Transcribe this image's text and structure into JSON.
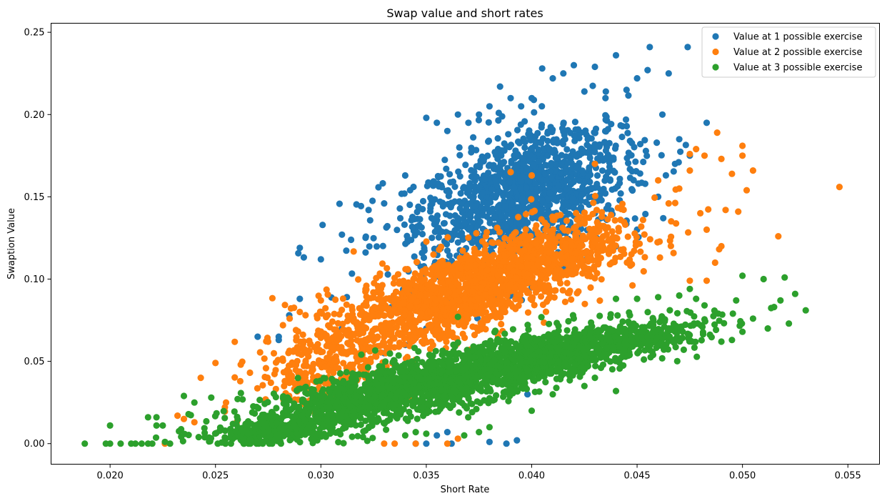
{
  "chart_data": {
    "type": "scatter",
    "title": "Swap value and short rates",
    "xlabel": "Short Rate",
    "ylabel": "Swaption Value",
    "xlim": [
      0.0172,
      0.0565
    ],
    "ylim": [
      -0.0125,
      0.2555
    ],
    "xticks": [
      0.02,
      0.025,
      0.03,
      0.035,
      0.04,
      0.045,
      0.05,
      0.055
    ],
    "xtick_labels": [
      "0.020",
      "0.025",
      "0.030",
      "0.035",
      "0.040",
      "0.045",
      "0.050",
      "0.055"
    ],
    "yticks": [
      0.0,
      0.05,
      0.1,
      0.15,
      0.2,
      0.25
    ],
    "ytick_labels": [
      "0.00",
      "0.05",
      "0.10",
      "0.15",
      "0.20",
      "0.25"
    ],
    "grid": false,
    "legend_position": "upper-right",
    "series": [
      {
        "name": "Value at 1 possible exercise",
        "color": "#1f77b4",
        "points": [
          [
            0.029,
            0.119
          ],
          [
            0.03,
            0.112
          ],
          [
            0.031,
            0.127
          ],
          [
            0.033,
            0.146
          ],
          [
            0.034,
            0.163
          ],
          [
            0.035,
            0.198
          ],
          [
            0.0355,
            0.195
          ],
          [
            0.036,
            0.19
          ],
          [
            0.0365,
            0.2
          ],
          [
            0.037,
            0.195
          ],
          [
            0.0375,
            0.2
          ],
          [
            0.038,
            0.205
          ],
          [
            0.0385,
            0.217
          ],
          [
            0.039,
            0.21
          ],
          [
            0.0395,
            0.205
          ],
          [
            0.04,
            0.21
          ],
          [
            0.0405,
            0.228
          ],
          [
            0.041,
            0.222
          ],
          [
            0.0415,
            0.225
          ],
          [
            0.042,
            0.23
          ],
          [
            0.0425,
            0.214
          ],
          [
            0.043,
            0.229
          ],
          [
            0.0435,
            0.21
          ],
          [
            0.044,
            0.236
          ],
          [
            0.0445,
            0.215
          ],
          [
            0.045,
            0.222
          ],
          [
            0.0455,
            0.227
          ],
          [
            0.0456,
            0.241
          ],
          [
            0.0462,
            0.2
          ],
          [
            0.0465,
            0.225
          ],
          [
            0.0474,
            0.241
          ],
          [
            0.0483,
            0.195
          ],
          [
            0.047,
            0.185
          ],
          [
            0.0475,
            0.175
          ],
          [
            0.0468,
            0.17
          ],
          [
            0.046,
            0.15
          ],
          [
            0.045,
            0.13
          ],
          [
            0.044,
            0.12
          ],
          [
            0.043,
            0.14
          ],
          [
            0.042,
            0.115
          ],
          [
            0.041,
            0.105
          ],
          [
            0.04,
            0.095
          ],
          [
            0.039,
            0.09
          ],
          [
            0.038,
            0.085
          ],
          [
            0.037,
            0.08
          ],
          [
            0.036,
            0.075
          ],
          [
            0.035,
            0.07
          ],
          [
            0.034,
            0.06
          ],
          [
            0.033,
            0.055
          ],
          [
            0.032,
            0.06
          ],
          [
            0.031,
            0.07
          ],
          [
            0.03,
            0.08
          ],
          [
            0.029,
            0.088
          ],
          [
            0.0285,
            0.078
          ],
          [
            0.028,
            0.065
          ],
          [
            0.027,
            0.065
          ],
          [
            0.028,
            0.063
          ],
          [
            0.0345,
            0.0
          ],
          [
            0.035,
            0.0
          ],
          [
            0.0362,
            0.0
          ],
          [
            0.038,
            0.001
          ],
          [
            0.0388,
            0.0
          ],
          [
            0.0393,
            0.002
          ],
          [
            0.0398,
            0.03
          ],
          [
            0.039,
            0.04
          ],
          [
            0.036,
            0.007
          ],
          [
            0.0355,
            0.005
          ]
        ],
        "clusters": [
          {
            "cx": 0.0395,
            "cy": 0.15,
            "rx": 0.0045,
            "ry": 0.03,
            "n": 650,
            "tilt": 2.5
          },
          {
            "cx": 0.038,
            "cy": 0.135,
            "rx": 0.0055,
            "ry": 0.04,
            "n": 350,
            "tilt": 3.0
          },
          {
            "cx": 0.041,
            "cy": 0.17,
            "rx": 0.004,
            "ry": 0.03,
            "n": 300,
            "tilt": 2.0
          }
        ]
      },
      {
        "name": "Value at 2 possible exercise",
        "color": "#ff7f0e",
        "points": [
          [
            0.0243,
            0.04
          ],
          [
            0.025,
            0.049
          ],
          [
            0.0262,
            0.048
          ],
          [
            0.0275,
            0.062
          ],
          [
            0.0282,
            0.072
          ],
          [
            0.029,
            0.08
          ],
          [
            0.03,
            0.087
          ],
          [
            0.0475,
            0.176
          ],
          [
            0.0478,
            0.179
          ],
          [
            0.0488,
            0.189
          ],
          [
            0.0475,
            0.166
          ],
          [
            0.0482,
            0.175
          ],
          [
            0.049,
            0.173
          ],
          [
            0.0495,
            0.164
          ],
          [
            0.05,
            0.181
          ],
          [
            0.05,
            0.175
          ],
          [
            0.0502,
            0.154
          ],
          [
            0.0505,
            0.166
          ],
          [
            0.0492,
            0.142
          ],
          [
            0.0498,
            0.141
          ],
          [
            0.048,
            0.14
          ],
          [
            0.0483,
            0.13
          ],
          [
            0.049,
            0.12
          ],
          [
            0.0487,
            0.11
          ],
          [
            0.0483,
            0.099
          ],
          [
            0.0475,
            0.099
          ],
          [
            0.0517,
            0.126
          ],
          [
            0.0546,
            0.156
          ],
          [
            0.047,
            0.155
          ],
          [
            0.0465,
            0.146
          ],
          [
            0.046,
            0.16
          ],
          [
            0.043,
            0.17
          ],
          [
            0.04,
            0.163
          ],
          [
            0.039,
            0.165
          ],
          [
            0.0335,
            0.0
          ],
          [
            0.0345,
            0.0
          ],
          [
            0.033,
            0.0
          ],
          [
            0.036,
            0.0
          ],
          [
            0.0365,
            0.003
          ],
          [
            0.0226,
            0.0
          ],
          [
            0.0232,
            0.017
          ],
          [
            0.0235,
            0.015
          ],
          [
            0.024,
            0.013
          ],
          [
            0.0255,
            0.025
          ]
        ],
        "clusters": [
          {
            "cx": 0.037,
            "cy": 0.095,
            "rx": 0.005,
            "ry": 0.022,
            "n": 900,
            "tilt": 3.2
          },
          {
            "cx": 0.034,
            "cy": 0.075,
            "rx": 0.005,
            "ry": 0.025,
            "n": 450,
            "tilt": 3.0
          },
          {
            "cx": 0.041,
            "cy": 0.115,
            "rx": 0.0045,
            "ry": 0.022,
            "n": 500,
            "tilt": 2.8
          },
          {
            "cx": 0.03,
            "cy": 0.045,
            "rx": 0.003,
            "ry": 0.02,
            "n": 200,
            "tilt": 3.0
          }
        ]
      },
      {
        "name": "Value at 3 possible exercise",
        "color": "#2ca02c",
        "points": [
          [
            0.0188,
            0.0
          ],
          [
            0.0198,
            0.0
          ],
          [
            0.02,
            0.0
          ],
          [
            0.0205,
            0.0
          ],
          [
            0.021,
            0.0
          ],
          [
            0.0212,
            0.0
          ],
          [
            0.0215,
            0.0
          ],
          [
            0.0218,
            0.0
          ],
          [
            0.022,
            0.0
          ],
          [
            0.02,
            0.011
          ],
          [
            0.0218,
            0.016
          ],
          [
            0.0222,
            0.016
          ],
          [
            0.0222,
            0.011
          ],
          [
            0.0225,
            0.011
          ],
          [
            0.0235,
            0.029
          ],
          [
            0.024,
            0.025
          ],
          [
            0.0248,
            0.028
          ],
          [
            0.05,
            0.102
          ],
          [
            0.051,
            0.1
          ],
          [
            0.052,
            0.101
          ],
          [
            0.0525,
            0.091
          ],
          [
            0.053,
            0.081
          ],
          [
            0.0515,
            0.083
          ],
          [
            0.0518,
            0.087
          ],
          [
            0.0522,
            0.073
          ],
          [
            0.0512,
            0.07
          ],
          [
            0.0505,
            0.076
          ],
          [
            0.0497,
            0.087
          ],
          [
            0.05,
            0.068
          ],
          [
            0.0495,
            0.063
          ],
          [
            0.049,
            0.062
          ],
          [
            0.0482,
            0.084
          ],
          [
            0.0478,
            0.088
          ],
          [
            0.0475,
            0.094
          ],
          [
            0.047,
            0.09
          ],
          [
            0.046,
            0.089
          ],
          [
            0.045,
            0.088
          ],
          [
            0.044,
            0.088
          ],
          [
            0.0465,
            0.07
          ],
          [
            0.0455,
            0.065
          ],
          [
            0.0445,
            0.06
          ],
          [
            0.044,
            0.032
          ],
          [
            0.043,
            0.04
          ],
          [
            0.042,
            0.045
          ],
          [
            0.0425,
            0.035
          ],
          [
            0.041,
            0.03
          ],
          [
            0.04,
            0.02
          ],
          [
            0.038,
            0.01
          ],
          [
            0.0375,
            0.007
          ],
          [
            0.0368,
            0.005
          ],
          [
            0.035,
            0.006
          ],
          [
            0.0345,
            0.007
          ],
          [
            0.034,
            0.005
          ],
          [
            0.032,
            0.004
          ],
          [
            0.0365,
            0.077
          ]
        ],
        "clusters": [
          {
            "cx": 0.036,
            "cy": 0.04,
            "rx": 0.005,
            "ry": 0.015,
            "n": 900,
            "tilt": 1.8
          },
          {
            "cx": 0.032,
            "cy": 0.025,
            "rx": 0.005,
            "ry": 0.014,
            "n": 600,
            "tilt": 1.6
          },
          {
            "cx": 0.041,
            "cy": 0.055,
            "rx": 0.0045,
            "ry": 0.015,
            "n": 600,
            "tilt": 1.8
          },
          {
            "cx": 0.045,
            "cy": 0.065,
            "rx": 0.0035,
            "ry": 0.012,
            "n": 250,
            "tilt": 1.6
          },
          {
            "cx": 0.028,
            "cy": 0.008,
            "rx": 0.0035,
            "ry": 0.008,
            "n": 350,
            "tilt": 1.0
          }
        ]
      }
    ]
  }
}
